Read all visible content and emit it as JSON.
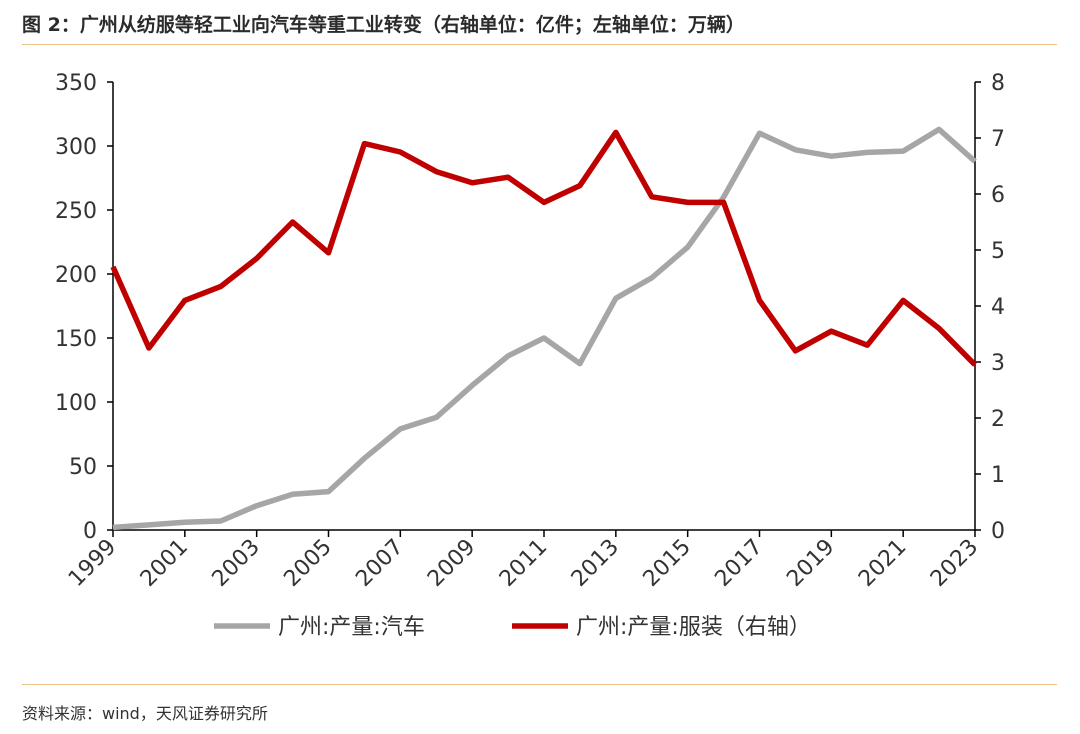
{
  "figure": {
    "title": "图 2：广州从纺服等轻工业向汽车等重工业转变（右轴单位：亿件；左轴单位：万辆）",
    "source": "资料来源：wind，天风证券研究所"
  },
  "chart_data": {
    "type": "line",
    "title": "图 2：广州从纺服等轻工业向汽车等重工业转变（右轴单位：亿件；左轴单位：万辆）",
    "x": [
      "1999",
      "2000",
      "2001",
      "2002",
      "2003",
      "2004",
      "2005",
      "2006",
      "2007",
      "2008",
      "2009",
      "2010",
      "2011",
      "2012",
      "2013",
      "2014",
      "2015",
      "2016",
      "2017",
      "2018",
      "2019",
      "2020",
      "2021",
      "2022",
      "2023"
    ],
    "x_tick_labels": [
      "1999",
      "2001",
      "2003",
      "2005",
      "2007",
      "2009",
      "2011",
      "2013",
      "2015",
      "2017",
      "2019",
      "2021",
      "2023"
    ],
    "y_left": {
      "lim": [
        0,
        350
      ],
      "ticks": [
        "0",
        "50",
        "100",
        "150",
        "200",
        "250",
        "300",
        "350"
      ]
    },
    "y_right": {
      "lim": [
        0,
        8
      ],
      "ticks": [
        "0",
        "1",
        "2",
        "3",
        "4",
        "5",
        "6",
        "7",
        "8"
      ]
    },
    "grid": false,
    "legend_position": "bottom",
    "series": [
      {
        "name": "广州:产量:汽车",
        "axis": "left",
        "color": "#a6a6a6",
        "values": [
          2,
          4,
          6,
          7,
          19,
          28,
          30,
          56,
          79,
          88,
          113,
          136,
          150,
          130,
          181,
          197,
          221,
          260,
          310,
          297,
          292,
          295,
          296,
          313,
          288
        ]
      },
      {
        "name": "广州:产量:服装（右轴）",
        "axis": "right",
        "color": "#c00000",
        "values": [
          4.7,
          3.25,
          4.1,
          4.35,
          4.85,
          5.5,
          4.95,
          6.9,
          6.75,
          6.4,
          6.2,
          6.3,
          5.85,
          6.15,
          7.1,
          5.95,
          5.85,
          5.85,
          4.1,
          3.2,
          3.55,
          3.3,
          4.1,
          3.6,
          2.95
        ]
      }
    ]
  }
}
